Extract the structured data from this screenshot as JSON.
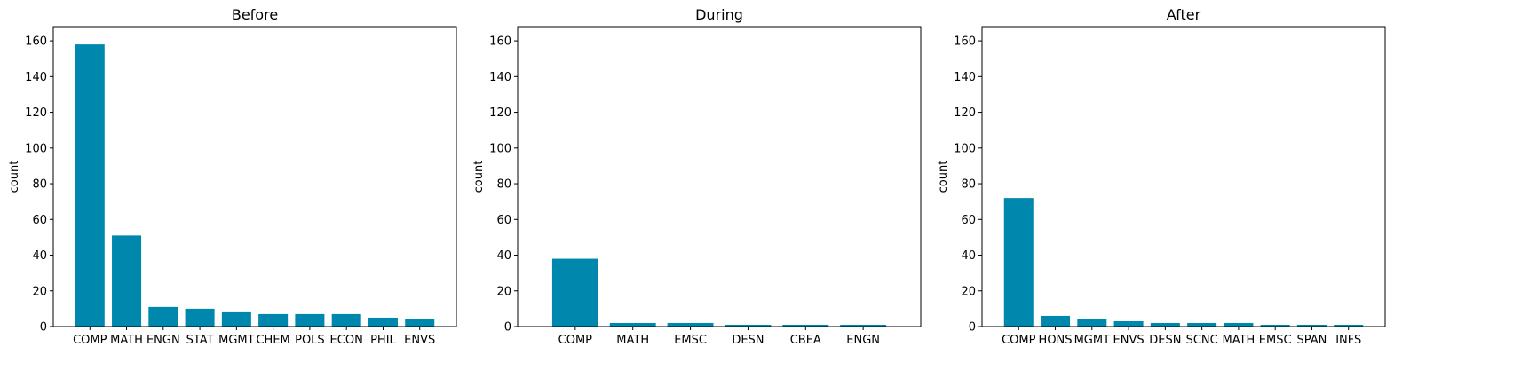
{
  "colors": {
    "bar": "#0087ad",
    "axes": "#000000",
    "background": "#ffffff"
  },
  "chart_data": [
    {
      "type": "bar",
      "title": "Before",
      "xlabel": "",
      "ylabel": "count",
      "ylim": [
        0,
        168
      ],
      "yticks": [
        0,
        20,
        40,
        60,
        80,
        100,
        120,
        140,
        160
      ],
      "grid": false,
      "categories": [
        "COMP",
        "MATH",
        "ENGN",
        "STAT",
        "MGMT",
        "CHEM",
        "POLS",
        "ECON",
        "PHIL",
        "ENVS"
      ],
      "values": [
        158,
        51,
        11,
        10,
        8,
        7,
        7,
        7,
        5,
        4
      ]
    },
    {
      "type": "bar",
      "title": "During",
      "xlabel": "",
      "ylabel": "count",
      "ylim": [
        0,
        168
      ],
      "yticks": [
        0,
        20,
        40,
        60,
        80,
        100,
        120,
        140,
        160
      ],
      "grid": false,
      "categories": [
        "COMP",
        "MATH",
        "EMSC",
        "DESN",
        "CBEA",
        "ENGN"
      ],
      "values": [
        38,
        2,
        2,
        1,
        1,
        1
      ]
    },
    {
      "type": "bar",
      "title": "After",
      "xlabel": "",
      "ylabel": "count",
      "ylim": [
        0,
        168
      ],
      "yticks": [
        0,
        20,
        40,
        60,
        80,
        100,
        120,
        140,
        160
      ],
      "grid": false,
      "categories": [
        "COMP",
        "HONS",
        "MGMT",
        "ENVS",
        "DESN",
        "SCNC",
        "MATH",
        "EMSC",
        "SPAN",
        "INFS"
      ],
      "values": [
        72,
        6,
        4,
        3,
        2,
        2,
        2,
        1,
        1,
        1
      ]
    }
  ]
}
